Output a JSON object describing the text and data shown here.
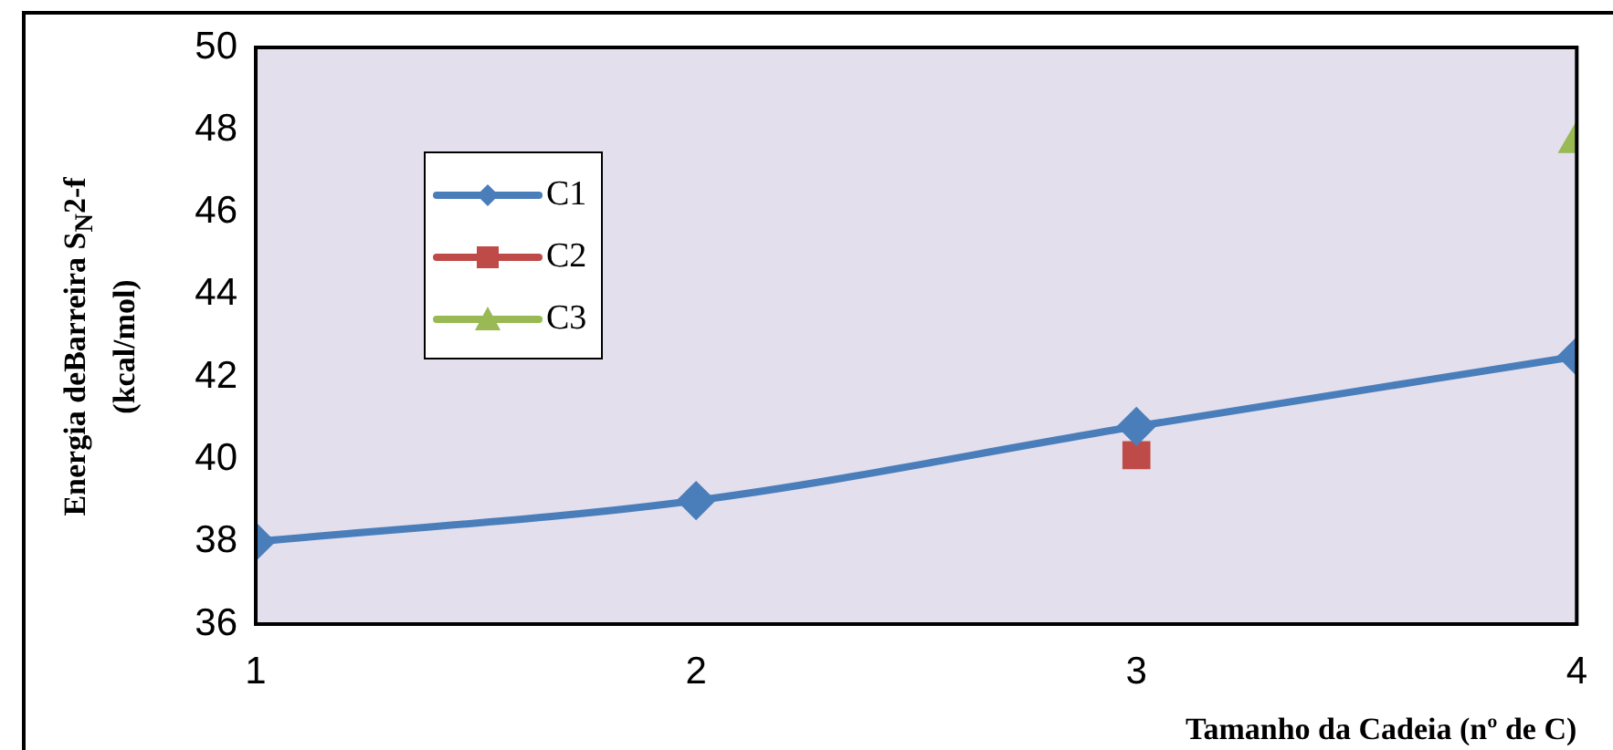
{
  "chart_data": {
    "type": "line",
    "xlabel": "Tamanho da Cadeia (nº de C)",
    "ylabel": "Energia deBarreira S$_{N}$2-f\n(kcal/mol)",
    "x": [
      1,
      2,
      3,
      4
    ],
    "series": [
      {
        "name": "C1",
        "color": "#4a7ebb",
        "values": [
          38.0,
          39.0,
          40.8,
          42.5
        ],
        "marker": "diamond"
      },
      {
        "name": "C2",
        "color": "#be4b48",
        "x": [
          3
        ],
        "values": [
          40.1
        ],
        "marker": "square"
      },
      {
        "name": "C3",
        "color": "#98b954",
        "x": [
          4
        ],
        "values": [
          47.7
        ],
        "marker": "triangle"
      }
    ],
    "xlim": [
      1,
      4
    ],
    "xticks": [
      1,
      2,
      3,
      4
    ],
    "ylim": [
      36,
      50
    ],
    "yticks": [
      36,
      38,
      40,
      42,
      44,
      46,
      48,
      50
    ],
    "grid": false,
    "legend": "top left"
  }
}
